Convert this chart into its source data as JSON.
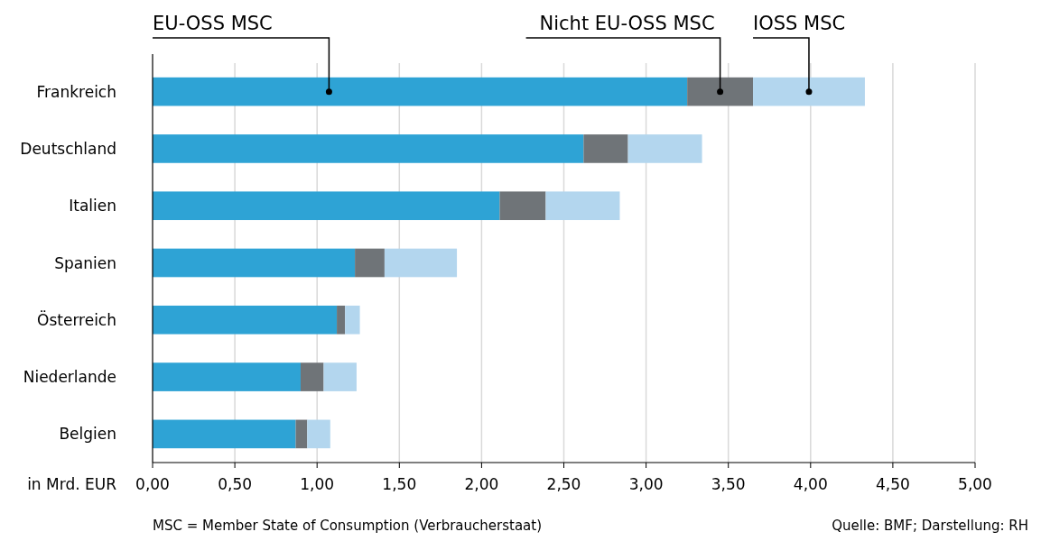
{
  "chart_data": {
    "type": "bar",
    "orientation": "horizontal",
    "stacked": true,
    "categories": [
      "Frankreich",
      "Deutschland",
      "Italien",
      "Spanien",
      "Österreich",
      "Niederlande",
      "Belgien"
    ],
    "series": [
      {
        "name": "EU-OSS MSC",
        "color": "#2ea3d5",
        "values": [
          3.25,
          2.62,
          2.11,
          1.23,
          1.12,
          0.9,
          0.87
        ]
      },
      {
        "name": "Nicht EU-OSS MSC",
        "color": "#6f7478",
        "values": [
          0.4,
          0.27,
          0.28,
          0.18,
          0.05,
          0.14,
          0.07
        ]
      },
      {
        "name": "IOSS MSC",
        "color": "#b3d6ee",
        "values": [
          0.68,
          0.45,
          0.45,
          0.44,
          0.09,
          0.2,
          0.14
        ]
      }
    ],
    "xlim": [
      0,
      5
    ],
    "xticks": [
      {
        "value": 0,
        "label": "0,00"
      },
      {
        "value": 0.5,
        "label": "0,50"
      },
      {
        "value": 1,
        "label": "1,00"
      },
      {
        "value": 1.5,
        "label": "1,50"
      },
      {
        "value": 2,
        "label": "2,00"
      },
      {
        "value": 2.5,
        "label": "2,50"
      },
      {
        "value": 3,
        "label": "3,00"
      },
      {
        "value": 3.5,
        "label": "3,50"
      },
      {
        "value": 4,
        "label": "4,00"
      },
      {
        "value": 4.5,
        "label": "4,50"
      },
      {
        "value": 5,
        "label": "5,00"
      }
    ],
    "xlabel": "in Mrd. EUR",
    "grid": "x",
    "legend": "top",
    "annotations": [
      "MSC = Member State of Consumption (Verbraucherstaat)",
      "Quelle: BMF; Darstellung: RH"
    ]
  }
}
